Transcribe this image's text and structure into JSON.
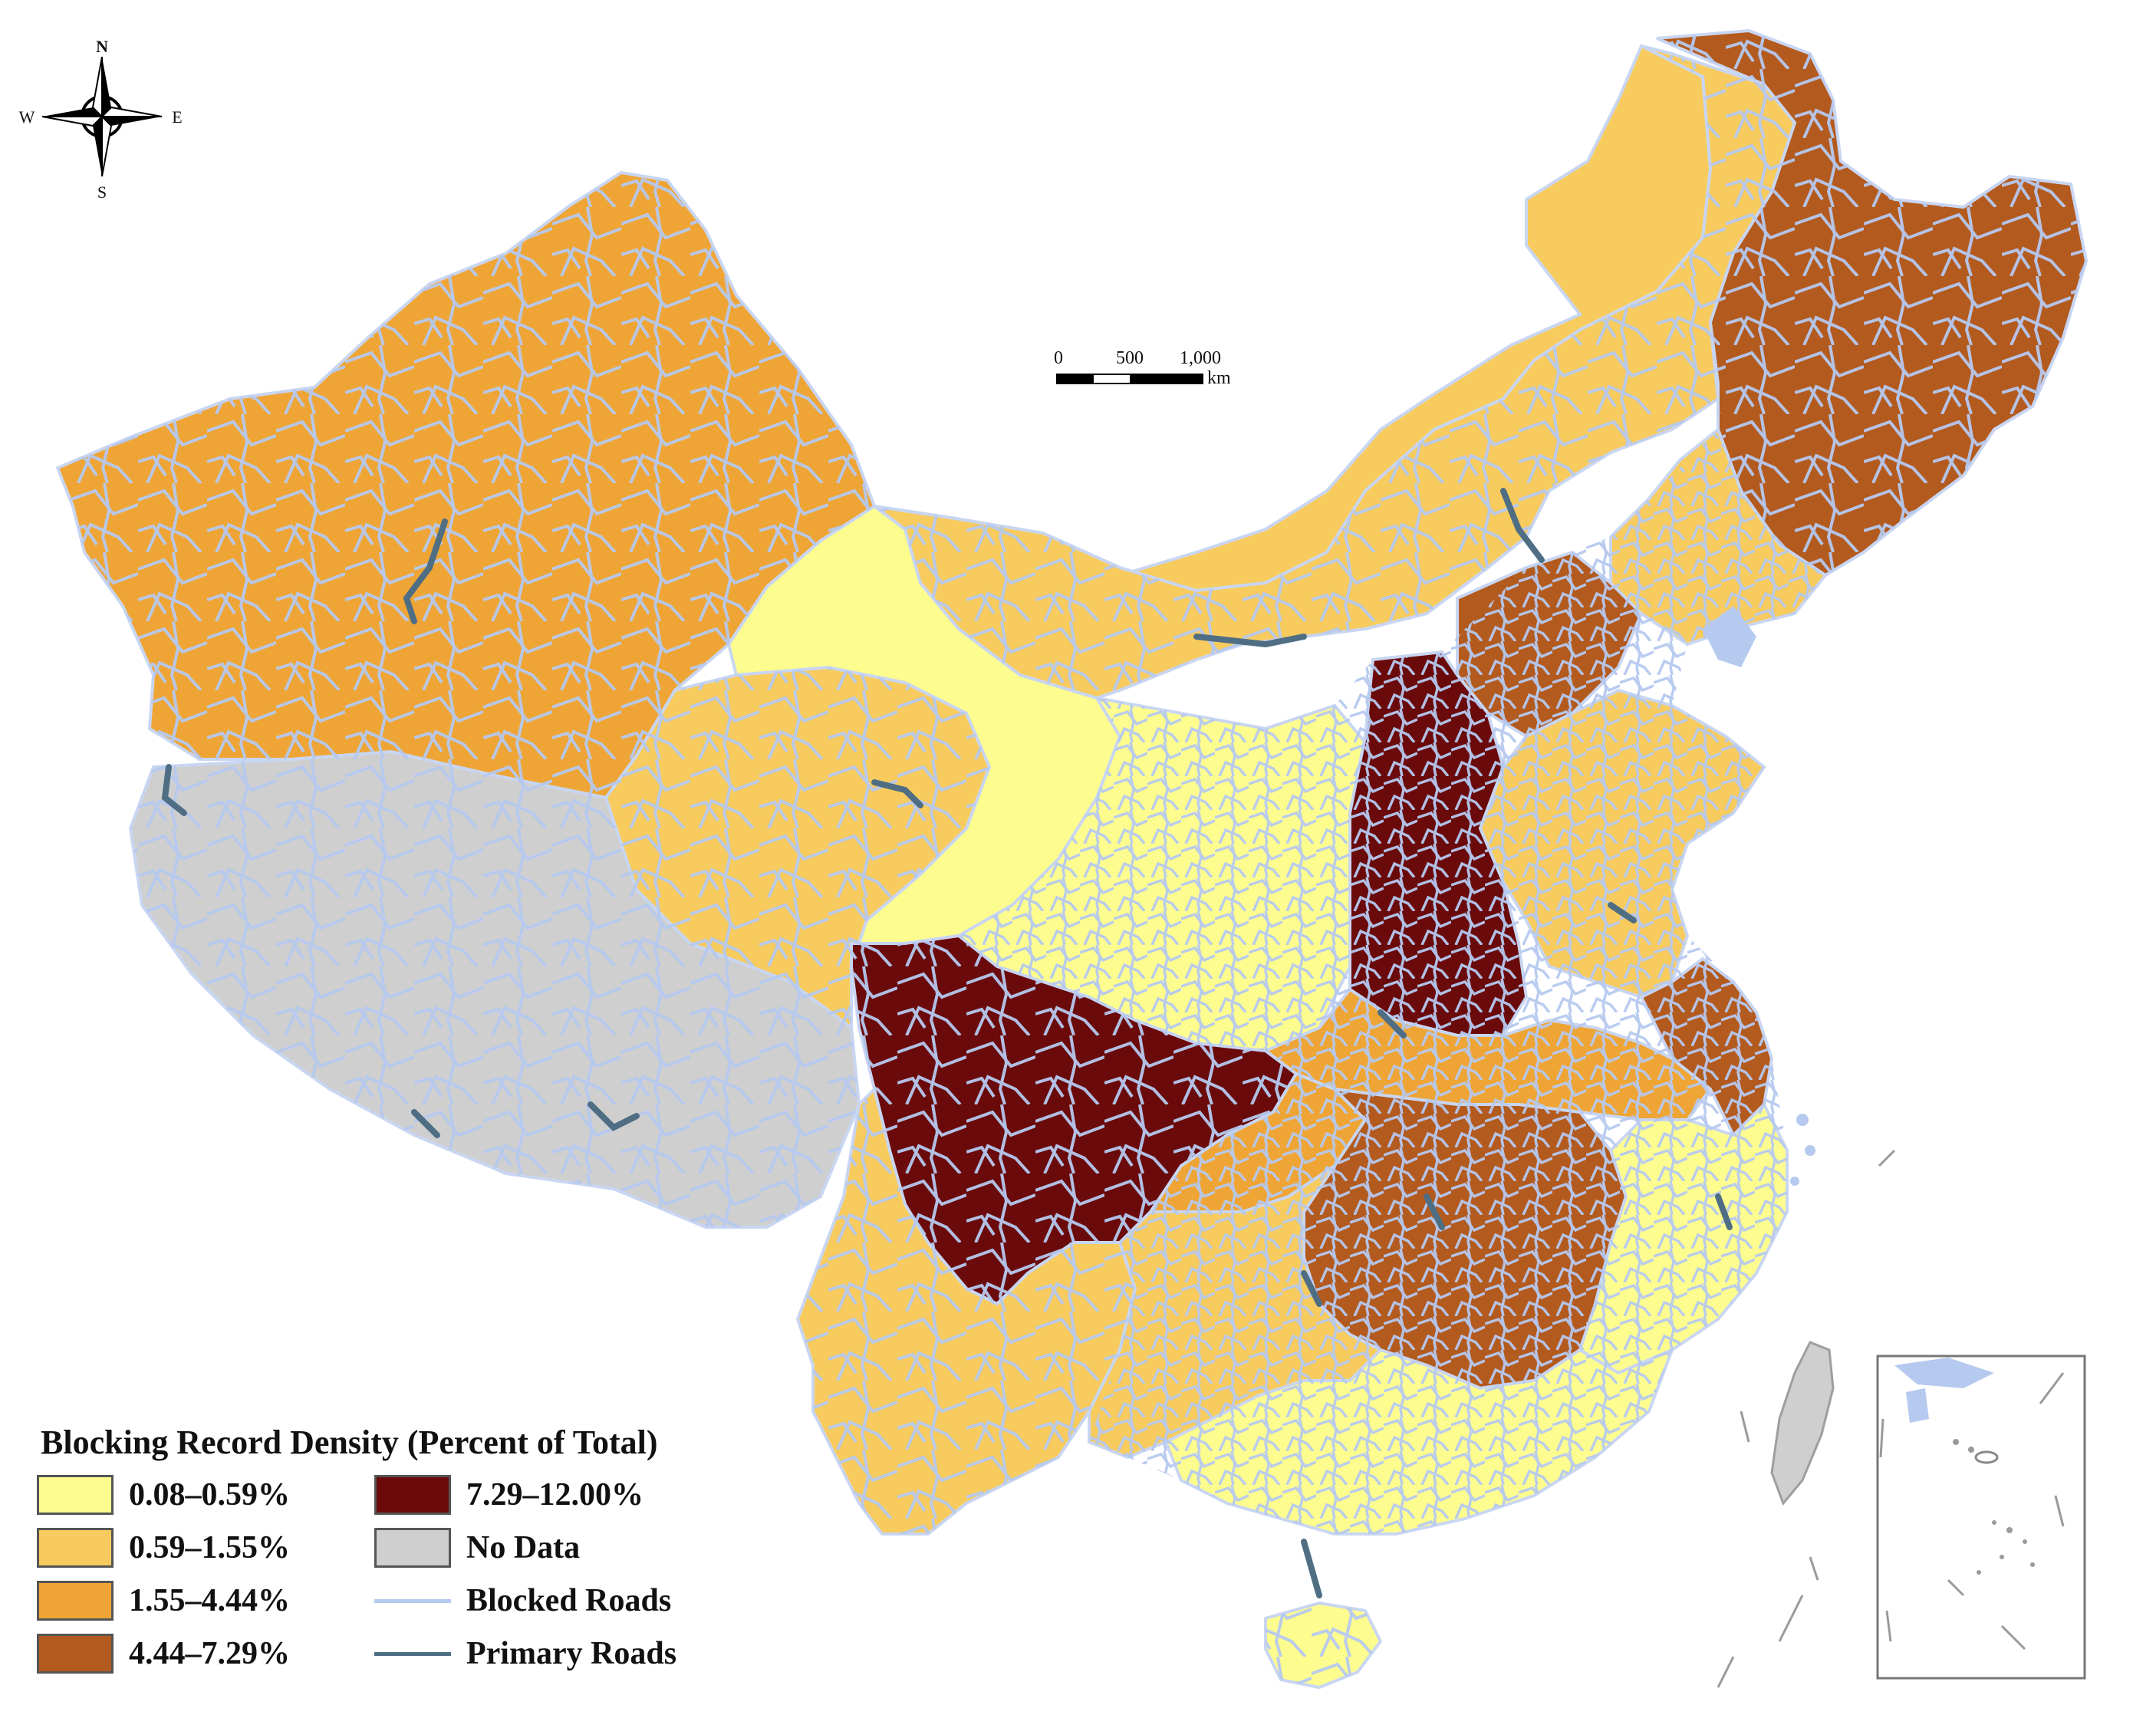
{
  "compass": {
    "north": "N",
    "south": "S",
    "east": "E",
    "west": "W"
  },
  "scale_bar": {
    "ticks": [
      "0",
      "500",
      "1,000"
    ],
    "unit": "km"
  },
  "legend": {
    "title": "Blocking Record Density (Percent of Total)",
    "classes": [
      {
        "label": "0.08–0.59%",
        "color": "#fdfc8f"
      },
      {
        "label": "0.59–1.55%",
        "color": "#f7cb5e"
      },
      {
        "label": "1.55–4.44%",
        "color": "#efa535"
      },
      {
        "label": "4.44–7.29%",
        "color": "#b35a1e"
      },
      {
        "label": "7.29–12.00%",
        "color": "#6a0a0a"
      },
      {
        "label": "No Data",
        "color": "#cfcfcf"
      }
    ],
    "lines": [
      {
        "label": "Blocked Roads",
        "color": "#b6c9ef"
      },
      {
        "label": "Primary Roads",
        "color": "#4f6e84"
      }
    ]
  }
}
